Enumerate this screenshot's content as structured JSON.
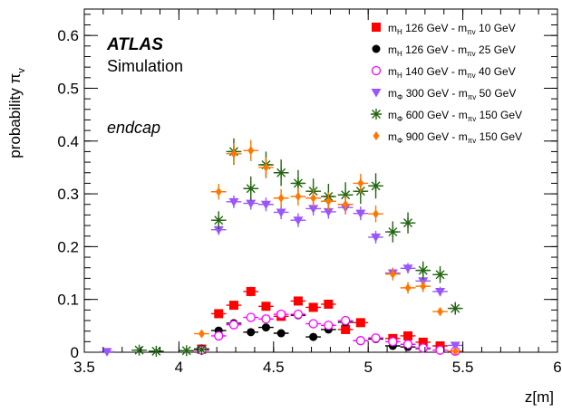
{
  "chart_data": {
    "type": "scatter",
    "xlabel": "z[m]",
    "ylabel_main": "probability π",
    "ylabel_sub": "v",
    "annotation": {
      "experiment": "ATLAS",
      "subtitle": "Simulation",
      "region": "endcap"
    },
    "xlim": [
      3.5,
      6.0
    ],
    "ylim": [
      0.0,
      0.65
    ],
    "xticks": [
      {
        "value": 3.5,
        "label": "3.5"
      },
      {
        "value": 4.0,
        "label": "4"
      },
      {
        "value": 4.5,
        "label": "4.5"
      },
      {
        "value": 5.0,
        "label": "5"
      },
      {
        "value": 5.5,
        "label": "5.5"
      },
      {
        "value": 6.0,
        "label": "6"
      }
    ],
    "yticks": [
      {
        "value": 0.0,
        "label": "0"
      },
      {
        "value": 0.1,
        "label": "0.1"
      },
      {
        "value": 0.2,
        "label": "0.2"
      },
      {
        "value": 0.3,
        "label": "0.3"
      },
      {
        "value": 0.4,
        "label": "0.4"
      },
      {
        "value": 0.5,
        "label": "0.5"
      },
      {
        "value": 0.6,
        "label": "0.6"
      }
    ],
    "x_bin_half_width": 0.04,
    "legend_position": "top-right",
    "series": [
      {
        "legend_main": "m",
        "legend_sub1": "H",
        "legend_mid": " 126 GeV - m",
        "legend_sub2": "πv",
        "legend_end": " 10 GeV",
        "marker": "square",
        "color": "#ff0000",
        "points": [
          {
            "x": 4.12,
            "y": 0.006,
            "err": 0.005
          },
          {
            "x": 4.21,
            "y": 0.073,
            "err": 0.007
          },
          {
            "x": 4.29,
            "y": 0.089,
            "err": 0.008
          },
          {
            "x": 4.38,
            "y": 0.115,
            "err": 0.009
          },
          {
            "x": 4.46,
            "y": 0.087,
            "err": 0.008
          },
          {
            "x": 4.54,
            "y": 0.068,
            "err": 0.007
          },
          {
            "x": 4.63,
            "y": 0.097,
            "err": 0.008
          },
          {
            "x": 4.71,
            "y": 0.085,
            "err": 0.008
          },
          {
            "x": 4.79,
            "y": 0.091,
            "err": 0.008
          },
          {
            "x": 4.88,
            "y": 0.043,
            "err": 0.006
          },
          {
            "x": 4.96,
            "y": 0.056,
            "err": 0.006
          },
          {
            "x": 5.13,
            "y": 0.026,
            "err": 0.005
          },
          {
            "x": 5.21,
            "y": 0.031,
            "err": 0.005
          },
          {
            "x": 5.29,
            "y": 0.019,
            "err": 0.004
          },
          {
            "x": 5.38,
            "y": 0.012,
            "err": 0.004
          }
        ]
      },
      {
        "legend_main": "m",
        "legend_sub1": "H",
        "legend_mid": " 126 GeV - m",
        "legend_sub2": "πv",
        "legend_end": " 25 GeV",
        "marker": "circle",
        "color": "#000000",
        "points": [
          {
            "x": 4.12,
            "y": 0.006,
            "err": 0.004
          },
          {
            "x": 4.21,
            "y": 0.041,
            "err": 0.005
          },
          {
            "x": 4.29,
            "y": 0.055,
            "err": 0.006
          },
          {
            "x": 4.38,
            "y": 0.038,
            "err": 0.005
          },
          {
            "x": 4.46,
            "y": 0.047,
            "err": 0.005
          },
          {
            "x": 4.54,
            "y": 0.036,
            "err": 0.005
          },
          {
            "x": 4.63,
            "y": 0.07,
            "err": 0.007
          },
          {
            "x": 4.71,
            "y": 0.029,
            "err": 0.004
          },
          {
            "x": 4.79,
            "y": 0.043,
            "err": 0.005
          },
          {
            "x": 4.88,
            "y": 0.057,
            "err": 0.006
          },
          {
            "x": 4.96,
            "y": 0.022,
            "err": 0.004
          },
          {
            "x": 5.04,
            "y": 0.025,
            "err": 0.004
          },
          {
            "x": 5.13,
            "y": 0.012,
            "err": 0.003
          },
          {
            "x": 5.21,
            "y": 0.01,
            "err": 0.003
          },
          {
            "x": 5.29,
            "y": 0.007,
            "err": 0.003
          }
        ]
      },
      {
        "legend_main": "m",
        "legend_sub1": "H",
        "legend_mid": " 140 GeV - m",
        "legend_sub2": "πv",
        "legend_end": " 40 GeV",
        "marker": "open-circle",
        "color": "#ff00ff",
        "points": [
          {
            "x": 4.12,
            "y": 0.004,
            "err": 0.003
          },
          {
            "x": 4.21,
            "y": 0.031,
            "err": 0.005
          },
          {
            "x": 4.29,
            "y": 0.052,
            "err": 0.006
          },
          {
            "x": 4.38,
            "y": 0.066,
            "err": 0.006
          },
          {
            "x": 4.46,
            "y": 0.063,
            "err": 0.006
          },
          {
            "x": 4.54,
            "y": 0.072,
            "err": 0.006
          },
          {
            "x": 4.63,
            "y": 0.072,
            "err": 0.006
          },
          {
            "x": 4.71,
            "y": 0.054,
            "err": 0.006
          },
          {
            "x": 4.79,
            "y": 0.051,
            "err": 0.006
          },
          {
            "x": 4.88,
            "y": 0.06,
            "err": 0.006
          },
          {
            "x": 4.96,
            "y": 0.022,
            "err": 0.004
          },
          {
            "x": 5.04,
            "y": 0.027,
            "err": 0.004
          },
          {
            "x": 5.13,
            "y": 0.02,
            "err": 0.004
          },
          {
            "x": 5.21,
            "y": 0.015,
            "err": 0.004
          },
          {
            "x": 5.29,
            "y": 0.008,
            "err": 0.003
          },
          {
            "x": 5.38,
            "y": 0.004,
            "err": 0.003
          },
          {
            "x": 5.46,
            "y": 0.002,
            "err": 0.002
          }
        ]
      },
      {
        "legend_main": "m",
        "legend_sub1": "Φ",
        "legend_mid": " 300 GeV - m",
        "legend_sub2": "πv",
        "legend_end": " 50 GeV",
        "marker": "triangle-down",
        "color": "#9955ff",
        "points": [
          {
            "x": 3.62,
            "y": 0.001,
            "err": 0.002
          },
          {
            "x": 4.21,
            "y": 0.232,
            "err": 0.01
          },
          {
            "x": 4.29,
            "y": 0.285,
            "err": 0.012
          },
          {
            "x": 4.38,
            "y": 0.282,
            "err": 0.012
          },
          {
            "x": 4.46,
            "y": 0.28,
            "err": 0.013
          },
          {
            "x": 4.54,
            "y": 0.265,
            "err": 0.013
          },
          {
            "x": 4.63,
            "y": 0.25,
            "err": 0.013
          },
          {
            "x": 4.71,
            "y": 0.272,
            "err": 0.013
          },
          {
            "x": 4.79,
            "y": 0.266,
            "err": 0.013
          },
          {
            "x": 4.88,
            "y": 0.274,
            "err": 0.013
          },
          {
            "x": 4.96,
            "y": 0.263,
            "err": 0.013
          },
          {
            "x": 5.04,
            "y": 0.218,
            "err": 0.012
          },
          {
            "x": 5.13,
            "y": 0.15,
            "err": 0.01
          },
          {
            "x": 5.21,
            "y": 0.159,
            "err": 0.01
          },
          {
            "x": 5.29,
            "y": 0.135,
            "err": 0.01
          },
          {
            "x": 5.38,
            "y": 0.115,
            "err": 0.009
          },
          {
            "x": 5.46,
            "y": 0.013,
            "err": 0.004
          }
        ]
      },
      {
        "legend_main": "m",
        "legend_sub1": "Φ",
        "legend_mid": " 600 GeV - m",
        "legend_sub2": "πv",
        "legend_end": " 150 GeV",
        "marker": "star",
        "color": "#226611",
        "points": [
          {
            "x": 3.79,
            "y": 0.004,
            "err": 0.002
          },
          {
            "x": 3.88,
            "y": 0.002,
            "err": 0.002
          },
          {
            "x": 4.04,
            "y": 0.003,
            "err": 0.002
          },
          {
            "x": 4.12,
            "y": 0.005,
            "err": 0.003
          },
          {
            "x": 4.21,
            "y": 0.25,
            "err": 0.017
          },
          {
            "x": 4.29,
            "y": 0.38,
            "err": 0.025
          },
          {
            "x": 4.38,
            "y": 0.31,
            "err": 0.023
          },
          {
            "x": 4.46,
            "y": 0.355,
            "err": 0.025
          },
          {
            "x": 4.54,
            "y": 0.34,
            "err": 0.025
          },
          {
            "x": 4.63,
            "y": 0.32,
            "err": 0.025
          },
          {
            "x": 4.71,
            "y": 0.305,
            "err": 0.024
          },
          {
            "x": 4.79,
            "y": 0.295,
            "err": 0.024
          },
          {
            "x": 4.88,
            "y": 0.298,
            "err": 0.024
          },
          {
            "x": 4.96,
            "y": 0.305,
            "err": 0.024
          },
          {
            "x": 5.04,
            "y": 0.315,
            "err": 0.024
          },
          {
            "x": 5.13,
            "y": 0.228,
            "err": 0.02
          },
          {
            "x": 5.21,
            "y": 0.245,
            "err": 0.02
          },
          {
            "x": 5.29,
            "y": 0.155,
            "err": 0.017
          },
          {
            "x": 5.38,
            "y": 0.147,
            "err": 0.016
          },
          {
            "x": 5.46,
            "y": 0.083,
            "err": 0.012
          }
        ]
      },
      {
        "legend_main": "m",
        "legend_sub1": "Φ",
        "legend_mid": " 900 GeV - m",
        "legend_sub2": "πv",
        "legend_end": " 150 GeV",
        "marker": "diamond",
        "color": "#ff7700",
        "points": [
          {
            "x": 4.12,
            "y": 0.035,
            "err": 0.006
          },
          {
            "x": 4.21,
            "y": 0.304,
            "err": 0.015
          },
          {
            "x": 4.29,
            "y": 0.376,
            "err": 0.02
          },
          {
            "x": 4.38,
            "y": 0.382,
            "err": 0.02
          },
          {
            "x": 4.46,
            "y": 0.35,
            "err": 0.019
          },
          {
            "x": 4.54,
            "y": 0.292,
            "err": 0.017
          },
          {
            "x": 4.63,
            "y": 0.295,
            "err": 0.017
          },
          {
            "x": 4.71,
            "y": 0.292,
            "err": 0.017
          },
          {
            "x": 4.79,
            "y": 0.286,
            "err": 0.017
          },
          {
            "x": 4.88,
            "y": 0.28,
            "err": 0.017
          },
          {
            "x": 4.96,
            "y": 0.32,
            "err": 0.018
          },
          {
            "x": 5.04,
            "y": 0.262,
            "err": 0.016
          },
          {
            "x": 5.13,
            "y": 0.148,
            "err": 0.012
          },
          {
            "x": 5.21,
            "y": 0.122,
            "err": 0.011
          },
          {
            "x": 5.29,
            "y": 0.125,
            "err": 0.011
          },
          {
            "x": 5.38,
            "y": 0.077,
            "err": 0.008
          },
          {
            "x": 5.46,
            "y": 0.002,
            "err": 0.002
          }
        ]
      }
    ]
  }
}
